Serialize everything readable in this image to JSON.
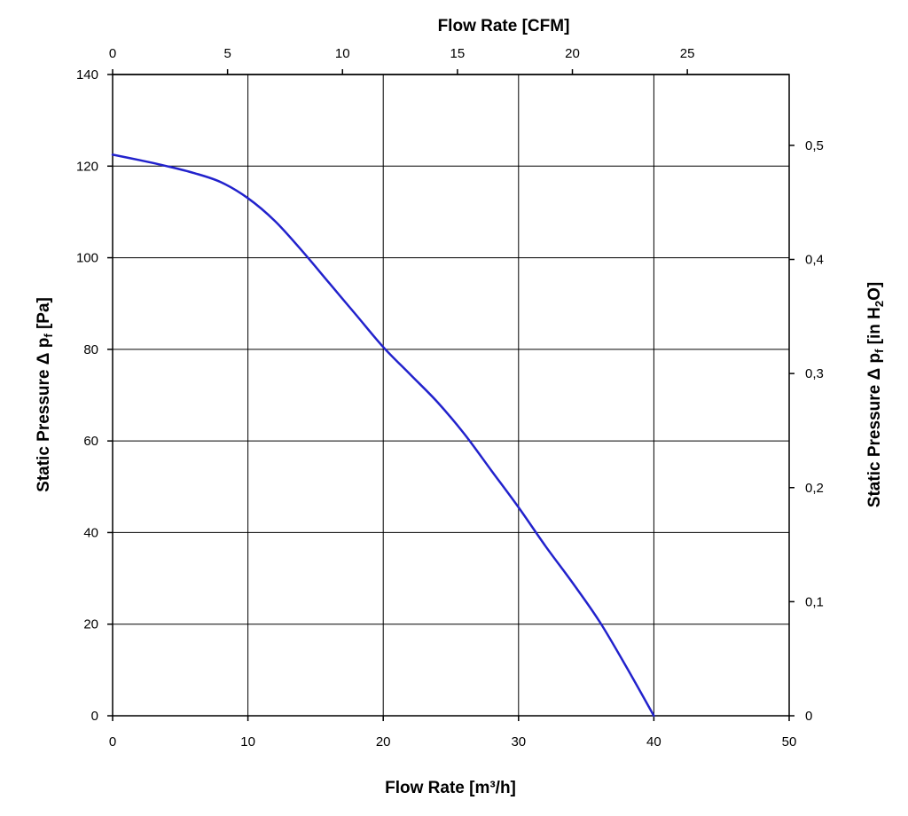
{
  "chart_data": {
    "type": "line",
    "title": "",
    "x_bottom": {
      "label": "Flow Rate [m³/h]",
      "range": [
        0,
        50
      ],
      "ticks": [
        0,
        10,
        20,
        30,
        40,
        50
      ],
      "tick_labels": [
        "0",
        "10",
        "20",
        "30",
        "40",
        "50"
      ]
    },
    "x_top": {
      "label": "Flow Rate [CFM]",
      "range": [
        0,
        29.43
      ],
      "ticks": [
        0,
        5,
        10,
        15,
        20,
        25
      ],
      "tick_labels": [
        "0",
        "5",
        "10",
        "15",
        "20",
        "25"
      ]
    },
    "y_left": {
      "label_main": "Static Pressure Δ p",
      "label_sub": "f",
      "label_unit": " [Pa]",
      "range": [
        0,
        140
      ],
      "ticks": [
        0,
        20,
        40,
        60,
        80,
        100,
        120,
        140
      ],
      "tick_labels": [
        "0",
        "20",
        "40",
        "60",
        "80",
        "100",
        "120",
        "140"
      ]
    },
    "y_right": {
      "label_main": "Static Pressure Δ p",
      "label_sub_f": "f",
      "label_unit_a": " [in H",
      "label_sub_2": "2",
      "label_unit_b": "O]",
      "range": [
        0,
        0.5621
      ],
      "ticks": [
        0,
        0.1,
        0.2,
        0.3,
        0.4,
        0.5
      ],
      "tick_labels": [
        "0",
        "0,1",
        "0,2",
        "0,3",
        "0,4",
        "0,5"
      ]
    },
    "grid": true,
    "series": [
      {
        "color": "#2222cc",
        "x": [
          0,
          2,
          4,
          6,
          8,
          10,
          12,
          14,
          16,
          18,
          20,
          22,
          24,
          26,
          28,
          30,
          32,
          34,
          36,
          38,
          40
        ],
        "y": [
          122.5,
          121.3,
          120.0,
          118.5,
          116.5,
          113.0,
          108.0,
          101.5,
          94.5,
          87.5,
          80.5,
          74.5,
          68.5,
          61.5,
          53.5,
          45.5,
          37.0,
          29.0,
          20.5,
          10.5,
          0
        ]
      }
    ]
  }
}
